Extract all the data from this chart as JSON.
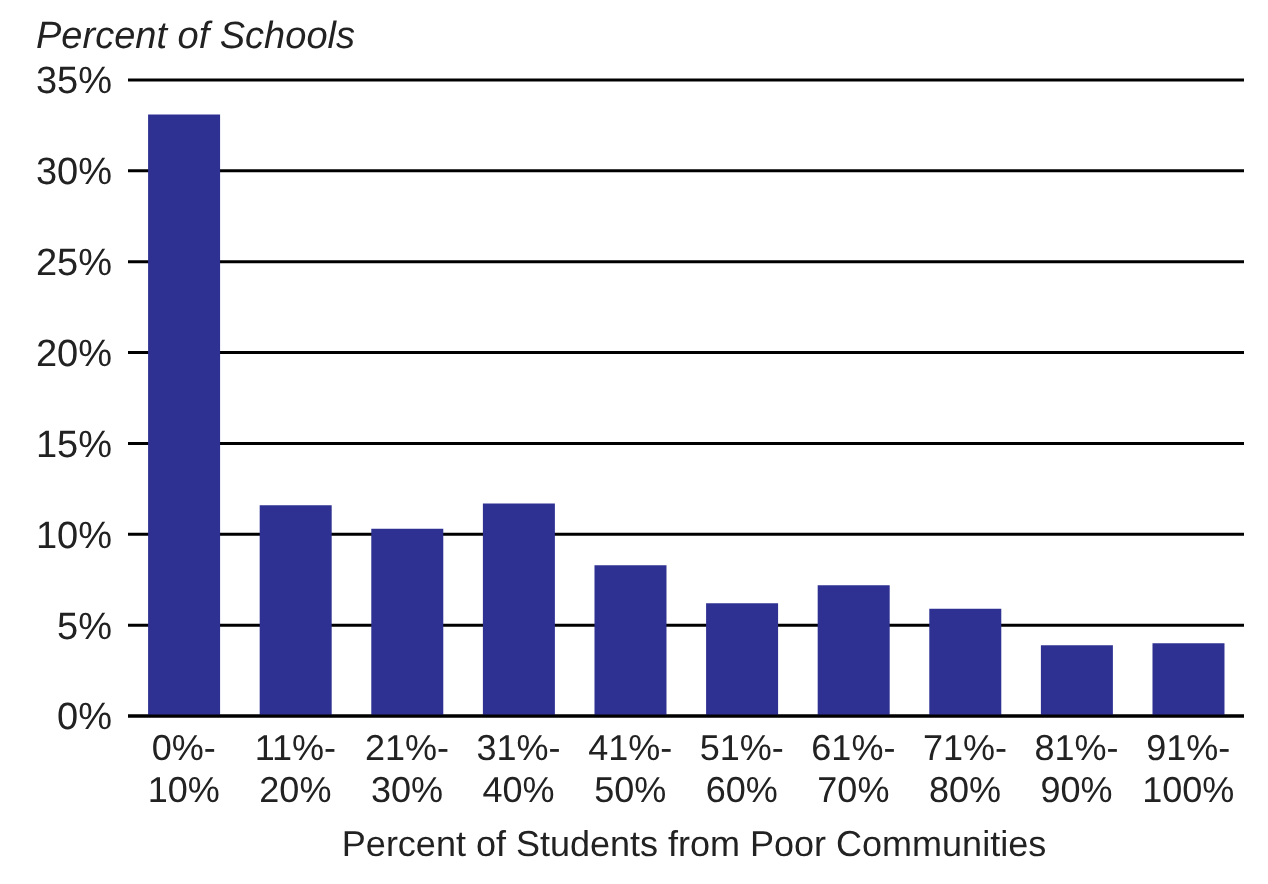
{
  "chart_data": {
    "type": "bar",
    "ylabel": "Percent of Schools",
    "xlabel": "Percent of Students from Poor Communities",
    "categories": [
      "0%-10%",
      "11%-20%",
      "21%-30%",
      "31%-40%",
      "41%-50%",
      "51%-60%",
      "61%-70%",
      "71%-80%",
      "81%-90%",
      "91%-100%"
    ],
    "values": [
      33.1,
      11.6,
      10.3,
      11.7,
      8.3,
      6.2,
      7.2,
      5.9,
      3.9,
      4.0
    ],
    "color": "#2e3192",
    "ylim": [
      0,
      35
    ],
    "yticks": [
      {
        "value": 0,
        "label": "0%"
      },
      {
        "value": 5,
        "label": "5%"
      },
      {
        "value": 10,
        "label": "10%"
      },
      {
        "value": 15,
        "label": "15%"
      },
      {
        "value": 20,
        "label": "20%"
      },
      {
        "value": 25,
        "label": "25%"
      },
      {
        "value": 30,
        "label": "30%"
      },
      {
        "value": 35,
        "label": "35%"
      }
    ],
    "grid": "y",
    "legend": false
  }
}
